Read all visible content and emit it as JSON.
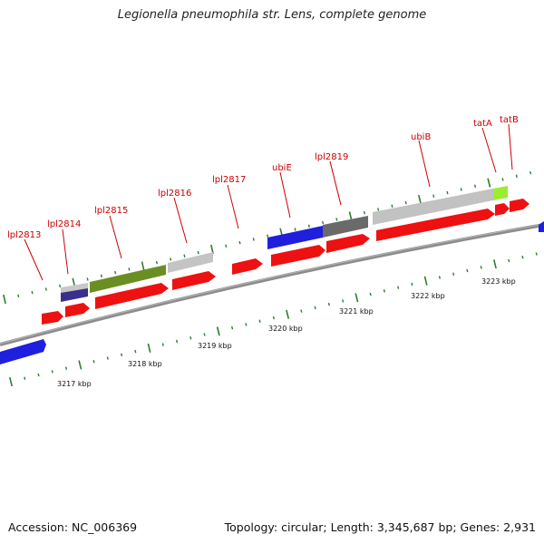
{
  "title": "Legionella pneumophila str. Lens, complete genome",
  "footer": {
    "accession": "Accession: NC_006369",
    "summary": "Topology: circular; Length: 3,345,687 bp; Genes: 2,931"
  },
  "colors": {
    "gene_label": "#cc0000",
    "leader_line": "#cc0000",
    "tick": "#2e7d32",
    "backbone": "#8c8c8c",
    "cds_red": "#ee1111",
    "blue": "#1f1fdd",
    "olive": "#6b8e23",
    "light_gray": "#c0c0c0",
    "dark_gray": "#6a6a6a",
    "navy": "#3a2f8a",
    "lime": "#99ee33"
  },
  "kbp_labels": [
    "3217 kbp",
    "3218 kbp",
    "3219 kbp",
    "3220 kbp",
    "3221 kbp",
    "3222 kbp",
    "3223 kbp"
  ],
  "gene_labels": [
    "lpl2813",
    "lpl2814",
    "lpl2815",
    "lpl2816",
    "lpl2817",
    "ubiE",
    "lpl2819",
    "ubiB",
    "tatA",
    "tatB"
  ]
}
